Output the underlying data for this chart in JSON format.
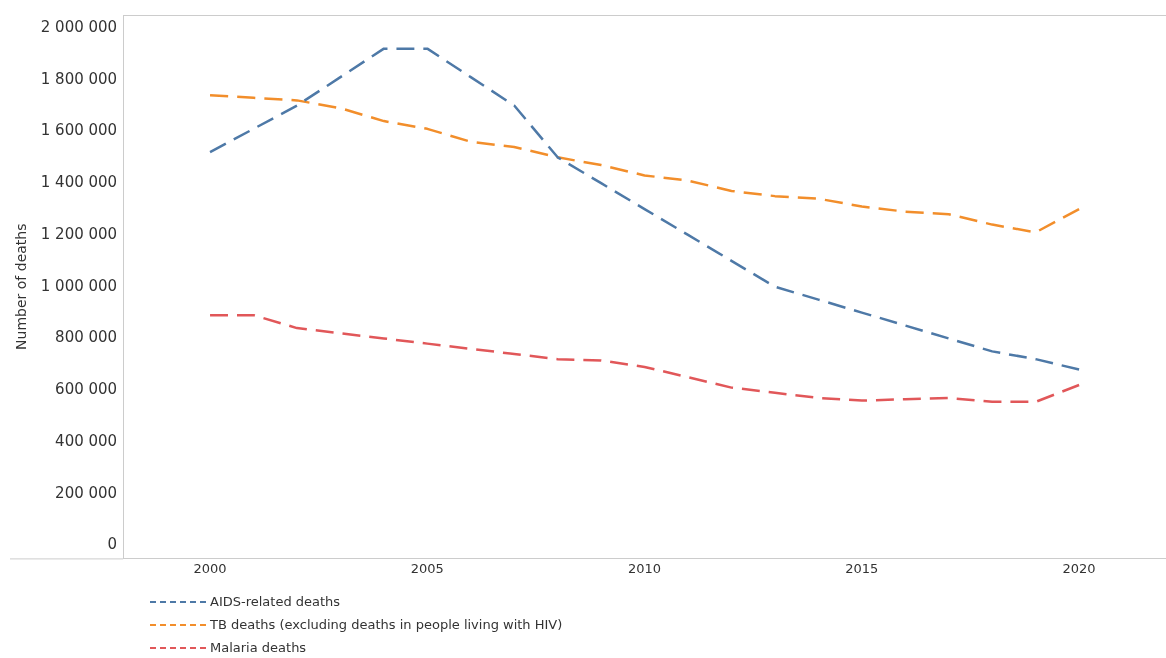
{
  "chart_data": {
    "type": "line",
    "ylabel": "Number of deaths",
    "x": [
      2000,
      2001,
      2002,
      2003,
      2004,
      2005,
      2006,
      2007,
      2008,
      2009,
      2010,
      2011,
      2012,
      2013,
      2014,
      2015,
      2016,
      2017,
      2018,
      2019,
      2020
    ],
    "xlim": [
      1998,
      2022
    ],
    "xticks": [
      2000,
      2005,
      2010,
      2015,
      2020
    ],
    "ylim": [
      -50000,
      2050000
    ],
    "yticks": [
      {
        "value": 0,
        "label": "0"
      },
      {
        "value": 200000,
        "label": "200 000"
      },
      {
        "value": 400000,
        "label": "400 000"
      },
      {
        "value": 600000,
        "label": "600 000"
      },
      {
        "value": 800000,
        "label": "800 000"
      },
      {
        "value": 1000000,
        "label": "1 000 000"
      },
      {
        "value": 1200000,
        "label": "1 200 000"
      },
      {
        "value": 1400000,
        "label": "1 400 000"
      },
      {
        "value": 1600000,
        "label": "1 600 000"
      },
      {
        "value": 1800000,
        "label": "1 800 000"
      },
      {
        "value": 2000000,
        "label": "2 000 000"
      }
    ],
    "series": [
      {
        "name": "AIDS-related deaths",
        "color": "#4e79a7",
        "values": [
          1520000,
          1610000,
          1700000,
          1810000,
          1920000,
          1920000,
          1810000,
          1700000,
          1500000,
          1400000,
          1300000,
          1200000,
          1100000,
          1000000,
          950000,
          900000,
          850000,
          800000,
          750000,
          720000,
          680000
        ]
      },
      {
        "name": "TB deaths (excluding deaths in people living with HIV)",
        "color": "#f28e2b",
        "values": [
          1740000,
          1730000,
          1720000,
          1690000,
          1640000,
          1610000,
          1560000,
          1540000,
          1500000,
          1470000,
          1430000,
          1410000,
          1370000,
          1350000,
          1340000,
          1310000,
          1290000,
          1280000,
          1240000,
          1210000,
          1300000
        ]
      },
      {
        "name": "Malaria deaths",
        "color": "#e15759",
        "values": [
          890000,
          890000,
          840000,
          820000,
          800000,
          780000,
          760000,
          740000,
          720000,
          715000,
          690000,
          650000,
          610000,
          590000,
          570000,
          560000,
          565000,
          570000,
          555000,
          555000,
          620000
        ]
      }
    ],
    "grid": false,
    "legend": "bottom left",
    "line_style": "dashed",
    "marker": "none"
  }
}
